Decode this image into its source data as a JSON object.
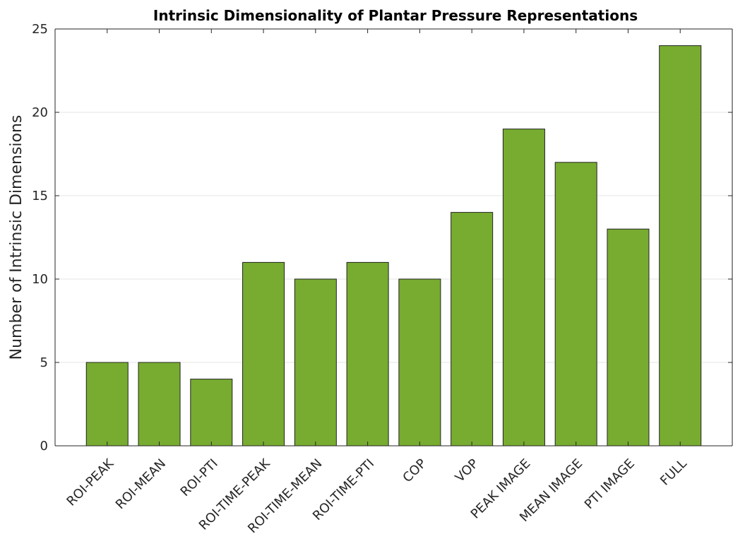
{
  "chart_data": {
    "type": "bar",
    "title": "Intrinsic Dimensionality of Plantar Pressure Representations",
    "xlabel": "",
    "ylabel": "Number of Intrinsic Dimensions",
    "categories": [
      "ROI-PEAK",
      "ROI-MEAN",
      "ROI-PTI",
      "ROI-TIME-PEAK",
      "ROI-TIME-MEAN",
      "ROI-TIME-PTI",
      "COP",
      "VOP",
      "PEAK IMAGE",
      "MEAN IMAGE",
      "PTI IMAGE",
      "FULL"
    ],
    "values": [
      5,
      5,
      4,
      11,
      10,
      11,
      10,
      14,
      19,
      17,
      13,
      24
    ],
    "ylim": [
      0,
      25
    ],
    "yticks": [
      "0",
      "5",
      "10",
      "15",
      "20",
      "25"
    ],
    "grid": true,
    "bar_color": "#77ac30",
    "legend": "none"
  }
}
